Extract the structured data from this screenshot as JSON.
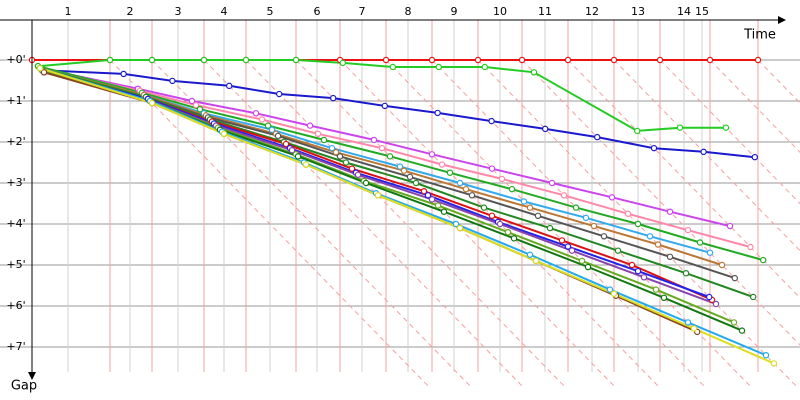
{
  "chart_data": {
    "type": "gap",
    "xlabel": "Time",
    "ylabel": "Gap",
    "x": [
      0,
      1.95,
      3.0,
      4.3,
      5.35,
      6.6,
      7.7,
      8.85,
      10.0,
      11.15,
      12.25,
      13.4,
      14.55,
      15.7,
      16.95,
      18.15
    ],
    "xlim": [
      -0.8,
      19.2
    ],
    "xticks": [
      {
        "value": 0.9,
        "label": "1"
      },
      {
        "value": 2.45,
        "label": "2"
      },
      {
        "value": 3.65,
        "label": "3"
      },
      {
        "value": 4.8,
        "label": "4"
      },
      {
        "value": 5.95,
        "label": "5"
      },
      {
        "value": 7.125,
        "label": "6"
      },
      {
        "value": 8.25,
        "label": "7"
      },
      {
        "value": 9.4,
        "label": "8"
      },
      {
        "value": 10.55,
        "label": "9"
      },
      {
        "value": 11.7,
        "label": "10"
      },
      {
        "value": 12.825,
        "label": "11"
      },
      {
        "value": 14.0,
        "label": "12"
      },
      {
        "value": 15.15,
        "label": "13"
      },
      {
        "value": 16.3,
        "label": "14"
      },
      {
        "value": 16.75,
        "label": "15"
      }
    ],
    "ylim": [
      -1,
      8
    ],
    "yticks": [
      {
        "value": 0,
        "label": "+0'"
      },
      {
        "value": 1,
        "label": "+1'"
      },
      {
        "value": 2,
        "label": "+2'"
      },
      {
        "value": 3,
        "label": "+3'"
      },
      {
        "value": 4,
        "label": "+4'"
      },
      {
        "value": 5,
        "label": "+5'"
      },
      {
        "value": 6,
        "label": "+6'"
      },
      {
        "value": 7,
        "label": "+7'"
      }
    ],
    "grid": true,
    "series": [
      {
        "color": "#ee1111",
        "values": [
          0,
          0,
          0,
          0,
          0,
          0,
          0,
          0,
          0,
          0,
          0,
          0,
          0,
          0,
          0,
          0
        ]
      },
      {
        "color": "#22cc22",
        "values": [
          0.15,
          0,
          0,
          0,
          0,
          0,
          0.07,
          0.17,
          0.17,
          0.17,
          0.3,
          1.73,
          1.65,
          1.65,
          null,
          null
        ]
      },
      {
        "color": "#1a1acc",
        "values": [
          0.25,
          0.34,
          0.51,
          0.63,
          0.83,
          0.93,
          1.12,
          1.29,
          1.49,
          1.68,
          1.88,
          2.15,
          2.24,
          2.37,
          null,
          null
        ]
      },
      {
        "color": "#cc44ee",
        "values": [
          0.2,
          0.7,
          1.0,
          1.3,
          1.6,
          1.95,
          2.3,
          2.65,
          3.0,
          3.35,
          3.7,
          4.05,
          null,
          null,
          null,
          null
        ]
      },
      {
        "color": "#ff88aa",
        "values": [
          0.2,
          0.75,
          1.1,
          1.45,
          1.8,
          2.15,
          2.55,
          2.9,
          3.3,
          3.75,
          4.15,
          4.56,
          null,
          null,
          null,
          null
        ]
      },
      {
        "color": "#22aa22",
        "values": [
          0.15,
          0.8,
          1.2,
          1.6,
          1.95,
          2.35,
          2.75,
          3.15,
          3.6,
          4.0,
          4.45,
          4.88,
          null,
          null,
          null,
          null
        ]
      },
      {
        "color": "#33aaee",
        "values": [
          0.2,
          0.85,
          1.3,
          1.7,
          2.15,
          2.6,
          3.0,
          3.45,
          3.85,
          4.3,
          4.7,
          null,
          null,
          null,
          null,
          null
        ]
      },
      {
        "color": "#bb7733",
        "values": [
          0.2,
          0.85,
          1.35,
          1.8,
          2.25,
          2.7,
          3.15,
          3.6,
          4.05,
          4.5,
          5.0,
          null,
          null,
          null,
          null,
          null
        ]
      },
      {
        "color": "#555555",
        "values": [
          0.25,
          0.9,
          1.4,
          1.85,
          2.35,
          2.85,
          3.3,
          3.8,
          4.3,
          4.8,
          5.32,
          null,
          null,
          null,
          null,
          null
        ]
      },
      {
        "color": "#228822",
        "values": [
          0.2,
          0.9,
          1.45,
          2.0,
          2.5,
          3.0,
          3.6,
          4.1,
          4.65,
          5.2,
          5.78,
          null,
          null,
          null,
          null,
          null
        ]
      },
      {
        "color": "#dd1111",
        "values": [
          0.25,
          0.95,
          1.5,
          2.05,
          2.65,
          3.2,
          3.8,
          4.4,
          5.0,
          5.85,
          null,
          null,
          null,
          null,
          null,
          null
        ]
      },
      {
        "color": "#2222ee",
        "values": [
          0.25,
          0.95,
          1.55,
          2.15,
          2.75,
          3.3,
          3.95,
          4.55,
          5.15,
          5.78,
          null,
          null,
          null,
          null,
          null,
          null
        ]
      },
      {
        "color": "#8844aa",
        "values": [
          0.3,
          1.0,
          1.6,
          2.2,
          2.8,
          3.4,
          4.0,
          4.65,
          5.3,
          5.95,
          null,
          null,
          null,
          null,
          null,
          null
        ]
      },
      {
        "color": "#66aa22",
        "values": [
          0.25,
          1.0,
          1.65,
          2.3,
          2.95,
          3.55,
          4.2,
          4.9,
          5.6,
          6.4,
          null,
          null,
          null,
          null,
          null,
          null
        ]
      },
      {
        "color": "#117711",
        "values": [
          0.2,
          1.0,
          1.7,
          2.35,
          3.0,
          3.7,
          4.35,
          5.05,
          5.8,
          6.6,
          null,
          null,
          null,
          null,
          null,
          null
        ]
      },
      {
        "color": "#884422",
        "values": [
          0.3,
          1.05,
          1.8,
          2.55,
          3.3,
          4.1,
          4.9,
          5.75,
          6.63,
          null,
          null,
          null,
          null,
          null,
          null,
          null
        ]
      },
      {
        "color": "#22aaee",
        "values": [
          0.2,
          1.0,
          1.75,
          2.5,
          3.25,
          4.0,
          4.75,
          5.6,
          6.4,
          7.2,
          null,
          null,
          null,
          null,
          null,
          null
        ]
      },
      {
        "color": "#dddd22",
        "values": [
          0.2,
          1.05,
          1.8,
          2.55,
          3.3,
          4.1,
          4.9,
          5.7,
          6.55,
          7.4,
          null,
          null,
          null,
          null,
          null,
          null
        ]
      }
    ]
  }
}
